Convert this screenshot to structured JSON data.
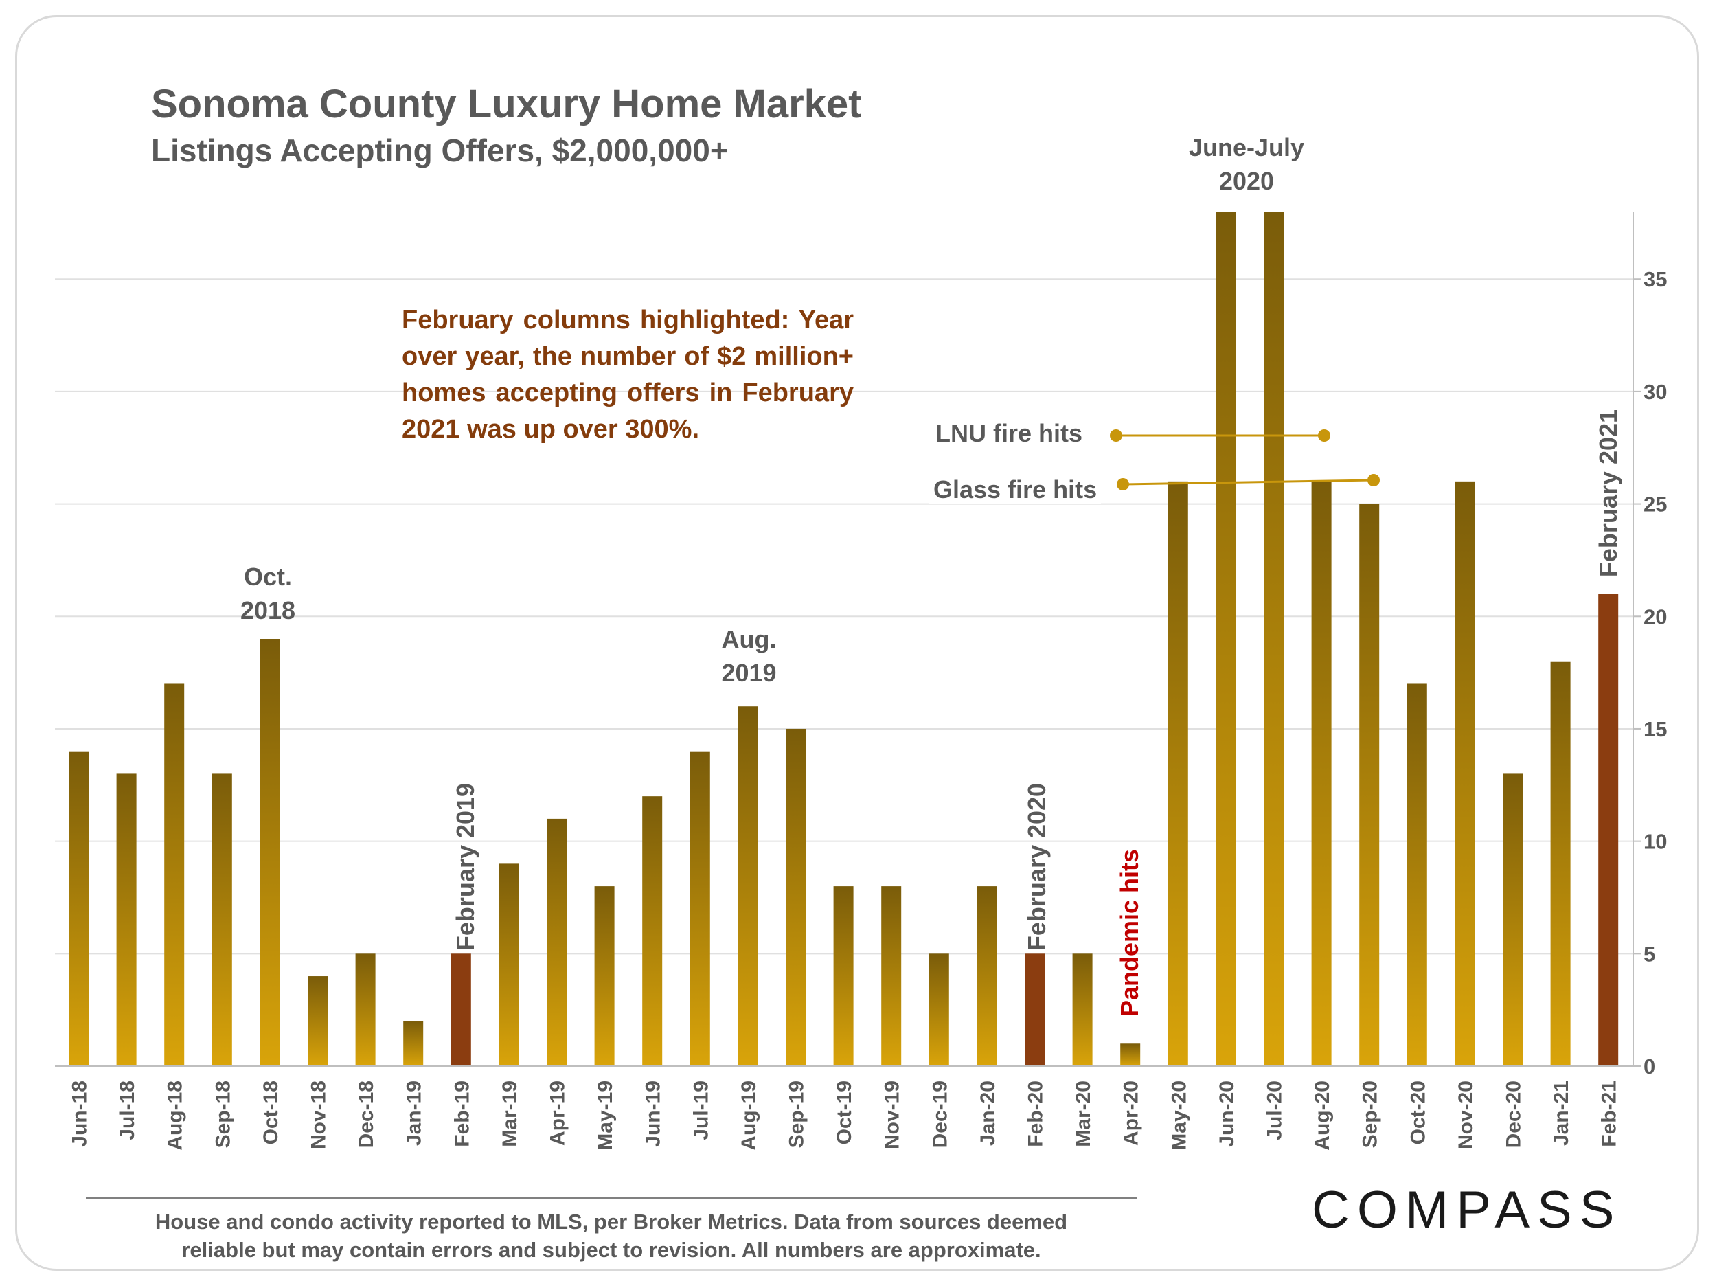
{
  "title": "Sonoma County Luxury Home Market",
  "subtitle": "Listings Accepting Offers, $2,000,000+",
  "annotation": "February columns highlighted: Year over year, the number of $2 million+ homes accepting offers in February 2021 was up over 300%.",
  "peaks": {
    "oct2018": [
      "Oct.",
      "2018"
    ],
    "aug2019": [
      "Aug.",
      "2019"
    ],
    "junjul2020": [
      "June-July",
      "2020"
    ]
  },
  "events": {
    "lnu": "LNU fire hits",
    "glass": "Glass fire hits",
    "pandemic": "Pandemic hits"
  },
  "feb_labels": {
    "feb2019": "February 2019",
    "feb2020": "February 2020",
    "feb2021": "February 2021"
  },
  "footer": {
    "line1": "House and condo activity reported to MLS, per Broker Metrics. Data from sources deemed",
    "line2": "reliable but may contain errors and subject to revision. All numbers are approximate."
  },
  "logo": "COMPASS",
  "colors": {
    "bar_top": "#7a5c0a",
    "bar_bottom": "#d9a40a",
    "feb_bar": "#8b3d10",
    "annotation_text": "#843c0c",
    "pandemic_text": "#c00000",
    "marker": "#c8960c",
    "grid": "#e0e0e0"
  },
  "chart_data": {
    "type": "bar",
    "title": "Sonoma County Luxury Home Market",
    "subtitle": "Listings Accepting Offers, $2,000,000+",
    "xlabel": "",
    "ylabel": "",
    "ylim": [
      0,
      38
    ],
    "yticks": [
      0,
      5,
      10,
      15,
      20,
      25,
      30,
      35
    ],
    "y_axis_side": "right",
    "grid": true,
    "categories": [
      "Jun-18",
      "Jul-18",
      "Aug-18",
      "Sep-18",
      "Oct-18",
      "Nov-18",
      "Dec-18",
      "Jan-19",
      "Feb-19",
      "Mar-19",
      "Apr-19",
      "May-19",
      "Jun-19",
      "Jul-19",
      "Aug-19",
      "Sep-19",
      "Oct-19",
      "Nov-19",
      "Dec-19",
      "Jan-20",
      "Feb-20",
      "Mar-20",
      "Apr-20",
      "May-20",
      "Jun-20",
      "Jul-20",
      "Aug-20",
      "Sep-20",
      "Oct-20",
      "Nov-20",
      "Dec-20",
      "Jan-21",
      "Feb-21"
    ],
    "values": [
      14,
      13,
      17,
      13,
      19,
      4,
      5,
      2,
      5,
      9,
      11,
      8,
      12,
      14,
      16,
      15,
      8,
      8,
      5,
      8,
      5,
      5,
      1,
      26,
      38,
      38,
      26,
      25,
      17,
      26,
      13,
      18,
      21
    ],
    "highlighted": [
      "Feb-19",
      "Feb-20",
      "Feb-21"
    ]
  }
}
